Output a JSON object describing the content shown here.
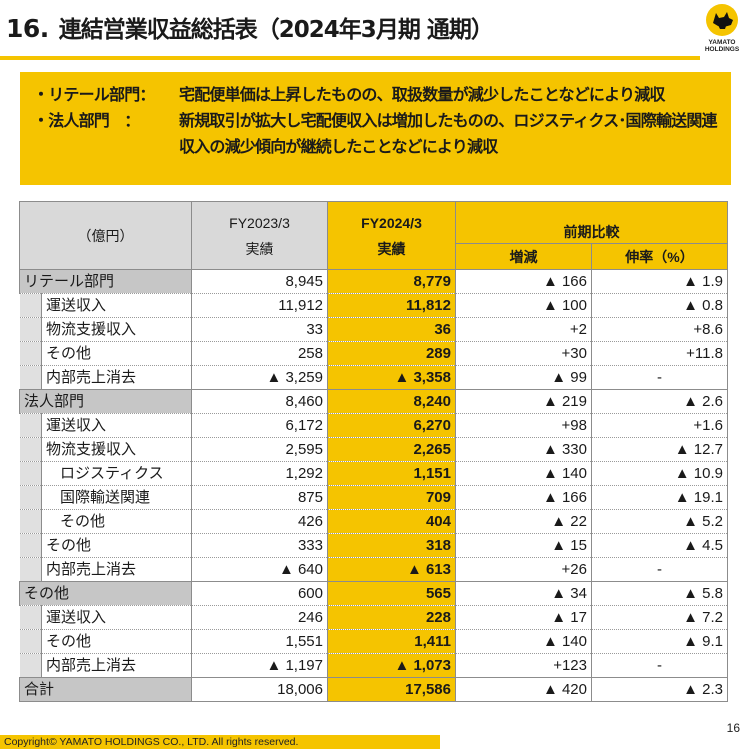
{
  "header": {
    "section_number": "16.",
    "title": "連結営業収益総括表（2024年3月期 通期）"
  },
  "logo": {
    "line1": "YAMATO",
    "line2": "HOLDINGS",
    "brand_color": "#f5c400"
  },
  "summary": {
    "items": [
      {
        "label": "・リテール部門：",
        "lines": [
          "宅配便単価は上昇したものの、取扱数量が減少したことなどにより減収"
        ]
      },
      {
        "label": "・法人部門　：",
        "lines": [
          "新規取引が拡大し宅配便収入は増加したものの、ロジスティクス･国際輸送関連",
          "収入の減少傾向が継続したことなどにより減収"
        ]
      }
    ]
  },
  "table": {
    "unit_label": "（億円）",
    "col_prev_year": "FY2023/3",
    "col_prev_sub": "実績",
    "col_curr_year": "FY2024/3",
    "col_curr_sub": "実績",
    "col_compare": "前期比較",
    "col_change": "増減",
    "col_rate": "伸率（%）",
    "rows": [
      {
        "type": "seg",
        "indent": 0,
        "label": "リテール部門",
        "prev": "8,945",
        "curr": "8,779",
        "change": "▲ 166",
        "rate": "▲ 1.9"
      },
      {
        "type": "sub",
        "indent": 1,
        "label": "運送収入",
        "prev": "11,912",
        "curr": "11,812",
        "change": "▲ 100",
        "rate": "▲ 0.8"
      },
      {
        "type": "sub",
        "indent": 1,
        "label": "物流支援収入",
        "prev": "33",
        "curr": "36",
        "change": "+2",
        "rate": "+8.6"
      },
      {
        "type": "sub",
        "indent": 1,
        "label": "その他",
        "prev": "258",
        "curr": "289",
        "change": "+30",
        "rate": "+11.8"
      },
      {
        "type": "sub",
        "indent": 1,
        "label": "内部売上消去",
        "prev": "▲ 3,259",
        "curr": "▲ 3,358",
        "change": "▲ 99",
        "rate": "-"
      },
      {
        "type": "seg",
        "indent": 0,
        "label": "法人部門",
        "prev": "8,460",
        "curr": "8,240",
        "change": "▲ 219",
        "rate": "▲ 2.6"
      },
      {
        "type": "sub",
        "indent": 1,
        "label": "運送収入",
        "prev": "6,172",
        "curr": "6,270",
        "change": "+98",
        "rate": "+1.6"
      },
      {
        "type": "sub",
        "indent": 1,
        "label": "物流支援収入",
        "prev": "2,595",
        "curr": "2,265",
        "change": "▲ 330",
        "rate": "▲ 12.7"
      },
      {
        "type": "sub",
        "indent": 2,
        "label": "ロジスティクス",
        "prev": "1,292",
        "curr": "1,151",
        "change": "▲ 140",
        "rate": "▲ 10.9"
      },
      {
        "type": "sub",
        "indent": 2,
        "label": "国際輸送関連",
        "prev": "875",
        "curr": "709",
        "change": "▲ 166",
        "rate": "▲ 19.1"
      },
      {
        "type": "sub",
        "indent": 2,
        "label": "その他",
        "prev": "426",
        "curr": "404",
        "change": "▲ 22",
        "rate": "▲ 5.2"
      },
      {
        "type": "sub",
        "indent": 1,
        "label": "その他",
        "prev": "333",
        "curr": "318",
        "change": "▲ 15",
        "rate": "▲ 4.5"
      },
      {
        "type": "sub",
        "indent": 1,
        "label": "内部売上消去",
        "prev": "▲ 640",
        "curr": "▲ 613",
        "change": "+26",
        "rate": "-"
      },
      {
        "type": "seg",
        "indent": 0,
        "label": "その他",
        "prev": "600",
        "curr": "565",
        "change": "▲ 34",
        "rate": "▲ 5.8"
      },
      {
        "type": "sub",
        "indent": 1,
        "label": "運送収入",
        "prev": "246",
        "curr": "228",
        "change": "▲ 17",
        "rate": "▲ 7.2"
      },
      {
        "type": "sub",
        "indent": 1,
        "label": "その他",
        "prev": "1,551",
        "curr": "1,411",
        "change": "▲ 140",
        "rate": "▲ 9.1"
      },
      {
        "type": "sub",
        "indent": 1,
        "label": "内部売上消去",
        "prev": "▲ 1,197",
        "curr": "▲ 1,073",
        "change": "+123",
        "rate": "-"
      },
      {
        "type": "total",
        "indent": 0,
        "label": "合計",
        "prev": "18,006",
        "curr": "17,586",
        "change": "▲ 420",
        "rate": "▲ 2.3"
      }
    ]
  },
  "footer": {
    "copyright": "Copyright© YAMATO HOLDINGS CO., LTD. All rights reserved.",
    "page_number": "16"
  }
}
